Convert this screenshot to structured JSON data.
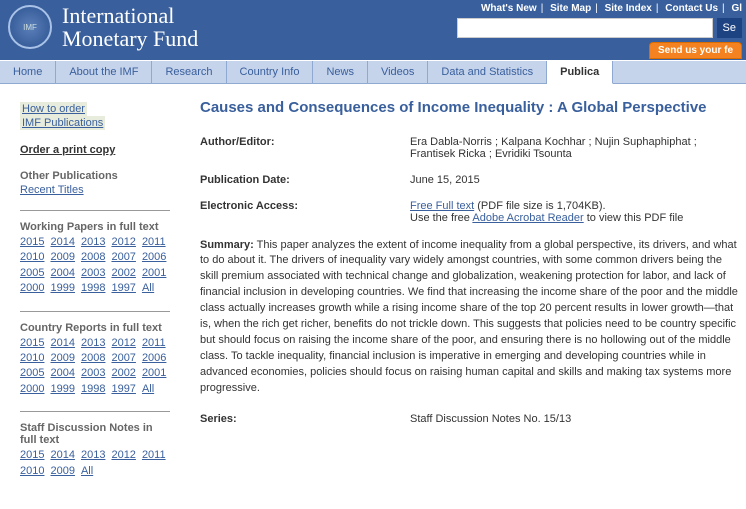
{
  "brand": {
    "line1": "International",
    "line2": "Monetary Fund"
  },
  "topnav": [
    "What's New",
    "Site Map",
    "Site Index",
    "Contact Us",
    "Gl"
  ],
  "search_button": "Se",
  "orange_button": "Send us your fe",
  "mainnav": [
    "Home",
    "About the IMF",
    "Research",
    "Country Info",
    "News",
    "Videos",
    "Data and Statistics",
    "Publica"
  ],
  "active_tab_index": 7,
  "sidebar": {
    "how_to_order": "How to order",
    "imf_pubs": "IMF Publications",
    "order_print": "Order a print copy",
    "other_pubs": "Other Publications",
    "recent_titles": "Recent Titles",
    "wp_head": "Working Papers in full text",
    "wp_years": [
      "2015",
      "2014",
      "2013",
      "2012",
      "2011",
      "2010",
      "2009",
      "2008",
      "2007",
      "2006",
      "2005",
      "2004",
      "2003",
      "2002",
      "2001",
      "2000",
      "1999",
      "1998",
      "1997",
      "All"
    ],
    "cr_head": "Country Reports in full text",
    "cr_years": [
      "2015",
      "2014",
      "2013",
      "2012",
      "2011",
      "2010",
      "2009",
      "2008",
      "2007",
      "2006",
      "2005",
      "2004",
      "2003",
      "2002",
      "2001",
      "2000",
      "1999",
      "1998",
      "1997",
      "All"
    ],
    "sdn_head": "Staff Discussion Notes in full text",
    "sdn_years": [
      "2015",
      "2014",
      "2013",
      "2012",
      "2011",
      "2010",
      "2009",
      "All"
    ]
  },
  "page": {
    "title": "Causes and Consequences of Income Inequality : A Global Perspective",
    "author_label": "Author/Editor:",
    "authors": "Era Dabla-Norris ; Kalpana Kochhar ; Nujin Suphaphiphat ; Frantisek Ricka ; Evridiki Tsounta",
    "pubdate_label": "Publication Date:",
    "pubdate": "June 15, 2015",
    "ea_label": "Electronic Access:",
    "ea_link": "Free Full text",
    "ea_size": " (PDF file size is 1,704KB).",
    "ea_line2a": "Use the free ",
    "ea_reader": "Adobe Acrobat Reader",
    "ea_line2b": " to view this PDF file",
    "summary_label": "Summary:",
    "summary": " This paper analyzes the extent of income inequality from a global perspective, its drivers, and what to do about it. The drivers of inequality vary widely amongst countries, with some common drivers being the skill premium associated with technical change and globalization, weakening protection for labor, and lack of financial inclusion in developing countries. We find that increasing the income share of the poor and the middle class actually increases growth while a rising income share of the top 20 percent results in lower growth—that is, when the rich get richer, benefits do not trickle down. This suggests that policies need to be country specific but should focus on raising the income share of the poor, and ensuring there is no hollowing out of the middle class. To tackle inequality, financial inclusion is imperative in emerging and developing countries while in advanced economies, policies should focus on raising human capital and skills and making tax systems more progressive.",
    "series_label": "Series:",
    "series": "Staff Discussion Notes No. 15/13"
  }
}
